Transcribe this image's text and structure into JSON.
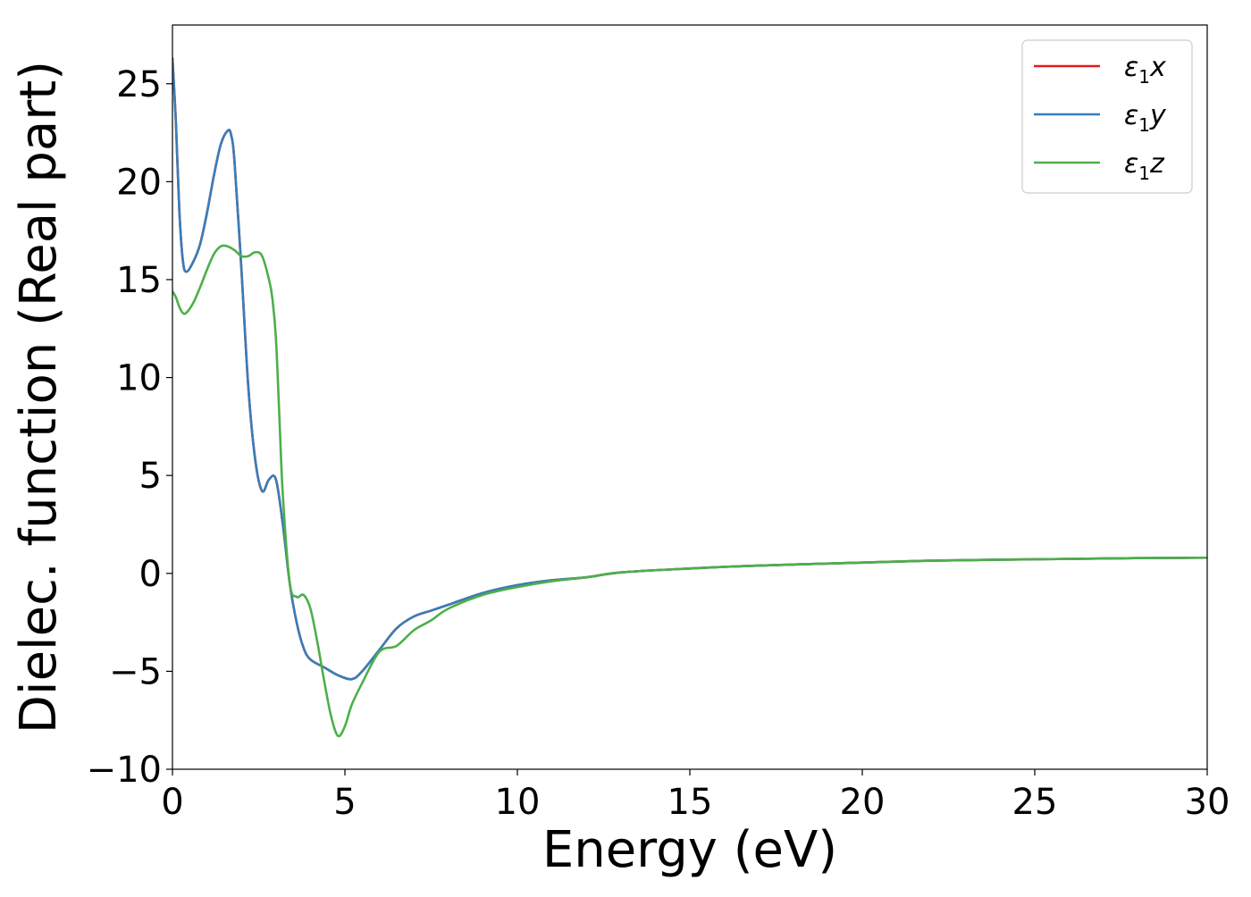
{
  "chart_data": {
    "type": "line",
    "title": "",
    "xlabel": "Energy (eV)",
    "ylabel": "Dielec. function (Real part)",
    "xlim": [
      0,
      30
    ],
    "ylim": [
      -10,
      28
    ],
    "xticks": [
      0,
      5,
      10,
      15,
      20,
      25,
      30
    ],
    "xtick_labels": [
      "0",
      "5",
      "10",
      "15",
      "20",
      "25",
      "30"
    ],
    "yticks": [
      -10,
      -5,
      0,
      5,
      10,
      15,
      20,
      25
    ],
    "ytick_labels": [
      "−10",
      "−5",
      "0",
      "5",
      "10",
      "15",
      "20",
      "25"
    ],
    "grid": false,
    "legend_position": "top-right",
    "series": [
      {
        "name": "ε₁x",
        "name_base": "ε",
        "name_sub": "1",
        "name_var": "x",
        "color": "#e41a1c",
        "x": [
          0,
          0.1,
          0.2,
          0.3,
          0.4,
          0.6,
          0.8,
          1.0,
          1.2,
          1.4,
          1.6,
          1.7,
          1.8,
          2.0,
          2.2,
          2.4,
          2.6,
          2.8,
          3.0,
          3.2,
          3.4,
          3.6,
          3.8,
          4.0,
          4.4,
          4.8,
          5.2,
          5.5,
          6.0,
          6.5,
          7.0,
          7.5,
          8.0,
          9.0,
          10.0,
          11.0,
          12.0,
          13.0,
          15.0,
          17.0,
          20.0,
          22.0,
          25.0,
          28.0,
          30.0
        ],
        "y": [
          26.3,
          23.0,
          18.5,
          16.0,
          15.4,
          15.9,
          16.8,
          18.4,
          20.3,
          21.9,
          22.6,
          22.4,
          21.0,
          15.5,
          9.5,
          5.8,
          4.2,
          4.8,
          4.8,
          2.5,
          -0.5,
          -2.5,
          -3.8,
          -4.4,
          -4.8,
          -5.2,
          -5.4,
          -5.0,
          -3.9,
          -2.8,
          -2.2,
          -1.9,
          -1.6,
          -1.0,
          -0.6,
          -0.35,
          -0.2,
          0.05,
          0.25,
          0.4,
          0.55,
          0.65,
          0.72,
          0.78,
          0.8
        ]
      },
      {
        "name": "ε₁y",
        "name_base": "ε",
        "name_sub": "1",
        "name_var": "y",
        "color": "#377eb8",
        "x": [
          0,
          0.1,
          0.2,
          0.3,
          0.4,
          0.6,
          0.8,
          1.0,
          1.2,
          1.4,
          1.6,
          1.7,
          1.8,
          2.0,
          2.2,
          2.4,
          2.6,
          2.8,
          3.0,
          3.2,
          3.4,
          3.6,
          3.8,
          4.0,
          4.4,
          4.8,
          5.2,
          5.5,
          6.0,
          6.5,
          7.0,
          7.5,
          8.0,
          9.0,
          10.0,
          11.0,
          12.0,
          13.0,
          15.0,
          17.0,
          20.0,
          22.0,
          25.0,
          28.0,
          30.0
        ],
        "y": [
          26.3,
          23.0,
          18.5,
          16.0,
          15.4,
          15.9,
          16.8,
          18.4,
          20.3,
          21.9,
          22.6,
          22.4,
          21.0,
          15.5,
          9.5,
          5.8,
          4.2,
          4.8,
          4.8,
          2.5,
          -0.5,
          -2.5,
          -3.8,
          -4.4,
          -4.8,
          -5.2,
          -5.4,
          -5.0,
          -3.9,
          -2.8,
          -2.2,
          -1.9,
          -1.6,
          -1.0,
          -0.6,
          -0.35,
          -0.2,
          0.05,
          0.25,
          0.4,
          0.55,
          0.65,
          0.72,
          0.78,
          0.8
        ]
      },
      {
        "name": "ε₁z",
        "name_base": "ε",
        "name_sub": "1",
        "name_var": "z",
        "color": "#4daf4a",
        "x": [
          0,
          0.1,
          0.2,
          0.3,
          0.4,
          0.6,
          0.8,
          1.0,
          1.2,
          1.4,
          1.6,
          1.8,
          2.0,
          2.2,
          2.4,
          2.6,
          2.8,
          2.9,
          3.0,
          3.1,
          3.2,
          3.4,
          3.6,
          3.8,
          4.0,
          4.2,
          4.4,
          4.6,
          4.8,
          5.0,
          5.2,
          5.5,
          6.0,
          6.5,
          7.0,
          7.5,
          8.0,
          9.0,
          10.0,
          11.0,
          12.0,
          13.0,
          15.0,
          17.0,
          20.0,
          22.0,
          25.0,
          28.0,
          30.0
        ],
        "y": [
          14.4,
          14.1,
          13.6,
          13.3,
          13.3,
          13.8,
          14.6,
          15.5,
          16.3,
          16.7,
          16.7,
          16.5,
          16.2,
          16.2,
          16.4,
          16.2,
          15.0,
          14.0,
          12.0,
          8.0,
          4.0,
          -0.5,
          -1.2,
          -1.1,
          -1.8,
          -3.5,
          -5.5,
          -7.3,
          -8.3,
          -7.8,
          -6.7,
          -5.6,
          -4.0,
          -3.7,
          -2.9,
          -2.4,
          -1.8,
          -1.1,
          -0.7,
          -0.4,
          -0.2,
          0.05,
          0.25,
          0.4,
          0.55,
          0.65,
          0.72,
          0.78,
          0.8
        ]
      }
    ]
  }
}
